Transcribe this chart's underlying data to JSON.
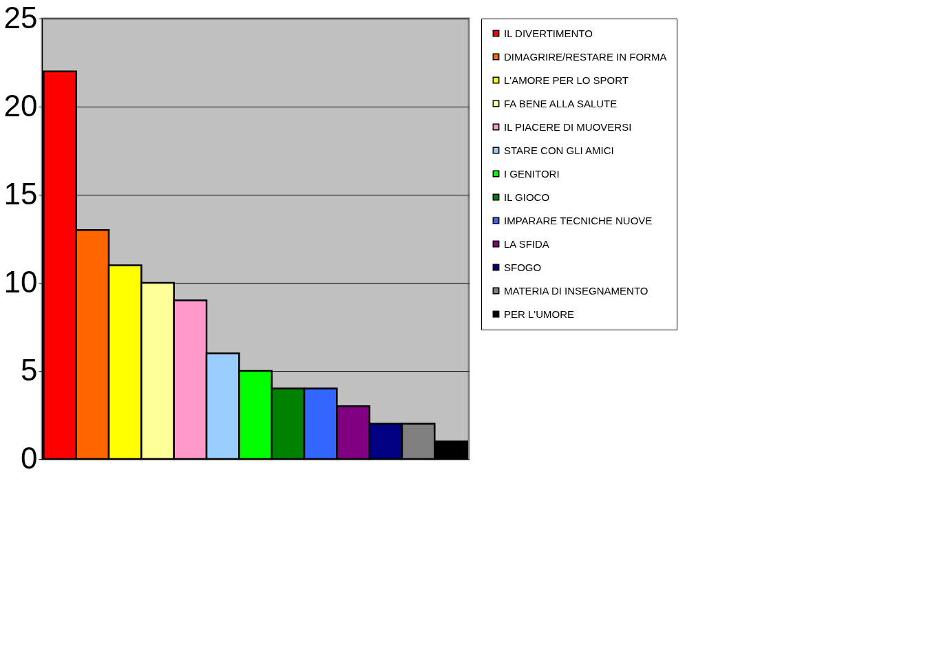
{
  "chart_data": {
    "type": "bar",
    "categories": [
      null,
      null,
      null,
      null,
      null,
      null,
      null,
      null,
      null,
      null,
      null,
      null,
      null
    ],
    "series": [
      {
        "name": "IL DIVERTIMENTO",
        "color": "#ff0000",
        "values": [
          22,
          null,
          null,
          null,
          null,
          null,
          null,
          null,
          null,
          null,
          null,
          null,
          null
        ]
      },
      {
        "name": "DIMAGRIRE/RESTARE IN FORMA",
        "color": "#ff6600",
        "values": [
          null,
          13,
          null,
          null,
          null,
          null,
          null,
          null,
          null,
          null,
          null,
          null,
          null
        ]
      },
      {
        "name": "L'AMORE PER LO SPORT",
        "color": "#ffff00",
        "values": [
          null,
          null,
          11,
          null,
          null,
          null,
          null,
          null,
          null,
          null,
          null,
          null,
          null
        ]
      },
      {
        "name": "FA BENE ALLA SALUTE",
        "color": "#ffff99",
        "values": [
          null,
          null,
          null,
          10,
          null,
          null,
          null,
          null,
          null,
          null,
          null,
          null,
          null
        ]
      },
      {
        "name": "IL PIACERE DI MUOVERSI",
        "color": "#ff99cc",
        "values": [
          null,
          null,
          null,
          null,
          9,
          null,
          null,
          null,
          null,
          null,
          null,
          null,
          null
        ]
      },
      {
        "name": "STARE CON GLI AMICI",
        "color": "#99ccff",
        "values": [
          null,
          null,
          null,
          null,
          null,
          6,
          null,
          null,
          null,
          null,
          null,
          null,
          null
        ]
      },
      {
        "name": "I GENITORI",
        "color": "#00ff00",
        "values": [
          null,
          null,
          null,
          null,
          null,
          null,
          5,
          null,
          null,
          null,
          null,
          null,
          null
        ]
      },
      {
        "name": "IL GIOCO",
        "color": "#008000",
        "values": [
          null,
          null,
          null,
          null,
          null,
          null,
          null,
          4,
          null,
          null,
          null,
          null,
          null
        ]
      },
      {
        "name": "IMPARARE TECNICHE NUOVE",
        "color": "#3366ff",
        "values": [
          null,
          null,
          null,
          null,
          null,
          null,
          null,
          null,
          4,
          null,
          null,
          null,
          null
        ]
      },
      {
        "name": "LA SFIDA",
        "color": "#800080",
        "values": [
          null,
          null,
          null,
          null,
          null,
          null,
          null,
          null,
          null,
          3,
          null,
          null,
          null
        ]
      },
      {
        "name": "SFOGO",
        "color": "#000080",
        "values": [
          null,
          null,
          null,
          null,
          null,
          null,
          null,
          null,
          null,
          null,
          2,
          null,
          null
        ]
      },
      {
        "name": "MATERIA DI INSEGNAMENTO",
        "color": "#808080",
        "values": [
          null,
          null,
          null,
          null,
          null,
          null,
          null,
          null,
          null,
          null,
          null,
          2,
          null
        ]
      },
      {
        "name": "PER L'UMORE",
        "color": "#000000",
        "values": [
          null,
          null,
          null,
          null,
          null,
          null,
          null,
          null,
          null,
          null,
          null,
          null,
          1
        ]
      }
    ],
    "ylim": [
      0,
      25
    ],
    "yticks": [
      0,
      5,
      10,
      15,
      20,
      25
    ],
    "grid": "y",
    "legend": "right",
    "tick_labels": "y"
  }
}
